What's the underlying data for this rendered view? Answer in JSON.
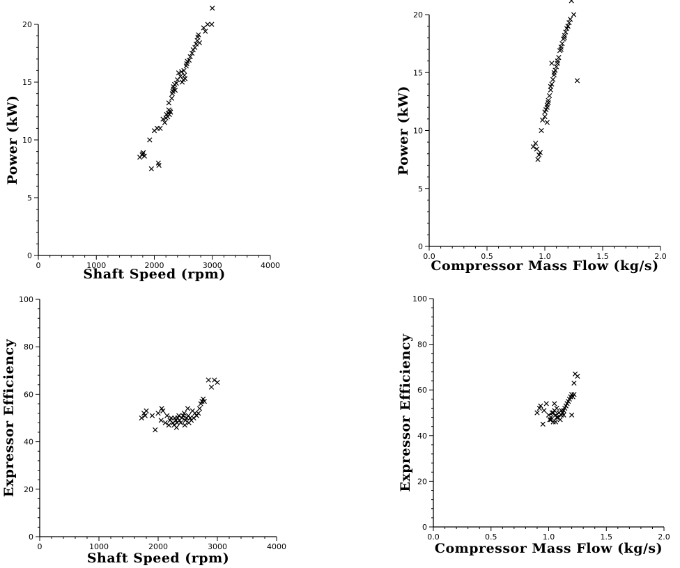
{
  "chart_data": [
    {
      "type": "scatter",
      "title": "",
      "xlabel": "Shaft Speed (rpm)",
      "ylabel": "Power (kW)",
      "xlim": [
        0,
        4000
      ],
      "ylim": [
        0,
        20
      ],
      "xticks": [
        0,
        1000,
        2000,
        3000,
        4000
      ],
      "yticks": [
        0,
        5,
        10,
        15,
        20
      ],
      "xtick_labels": [
        "0",
        "1000",
        "2000",
        "3000",
        "4000"
      ],
      "ytick_labels": [
        "0",
        "5",
        "10",
        "15",
        "20"
      ],
      "grid": false,
      "marker": "x",
      "series": [
        {
          "x": [
            1750,
            1790,
            1810,
            1830,
            1800,
            1950,
            1920,
            2000,
            2050,
            2080,
            2070,
            2100,
            2150,
            2180,
            2200,
            2210,
            2230,
            2240,
            2250,
            2260,
            2270,
            2280,
            2250,
            2300,
            2310,
            2320,
            2330,
            2330,
            2350,
            2360,
            2380,
            2400,
            2420,
            2450,
            2470,
            2480,
            2500,
            2510,
            2520,
            2530,
            2550,
            2560,
            2570,
            2600,
            2620,
            2650,
            2670,
            2700,
            2720,
            2740,
            2750,
            2760,
            2780,
            2850,
            2880,
            2920,
            3000,
            2990
          ],
          "y": [
            8.5,
            8.7,
            8.9,
            8.6,
            8.8,
            7.5,
            10.0,
            10.8,
            11.0,
            7.8,
            8.0,
            11.0,
            11.8,
            11.5,
            11.9,
            12.2,
            12.0,
            12.3,
            12.6,
            12.2,
            12.5,
            12.4,
            13.2,
            13.6,
            14.0,
            14.2,
            14.4,
            14.6,
            14.8,
            14.3,
            14.9,
            15.2,
            15.8,
            15.5,
            15.9,
            15.0,
            15.2,
            16.0,
            15.6,
            15.3,
            16.4,
            16.6,
            16.8,
            16.9,
            17.2,
            17.5,
            17.8,
            18.0,
            18.3,
            18.6,
            18.9,
            19.1,
            18.4,
            19.7,
            19.4,
            20.0,
            21.4,
            20.0
          ]
        }
      ]
    },
    {
      "type": "scatter",
      "title": "",
      "xlabel": "Compressor Mass Flow (kg/s)",
      "ylabel": "Power (kW)",
      "xlim": [
        0.0,
        2.0
      ],
      "ylim": [
        0,
        20
      ],
      "xticks": [
        0.0,
        0.5,
        1.0,
        1.5,
        2.0
      ],
      "yticks": [
        0,
        5,
        10,
        15,
        20
      ],
      "xtick_labels": [
        "0.0",
        "0.5",
        "1.0",
        "1.5",
        "2.0"
      ],
      "ytick_labels": [
        "0",
        "5",
        "10",
        "15",
        "20"
      ],
      "grid": false,
      "marker": "x",
      "series": [
        {
          "x": [
            0.9,
            0.92,
            0.93,
            0.94,
            0.95,
            0.96,
            0.97,
            0.98,
            1.0,
            1.01,
            1.02,
            1.03,
            1.02,
            1.04,
            1.05,
            1.06,
            1.07,
            1.08,
            1.09,
            1.1,
            1.11,
            1.12,
            1.13,
            1.14,
            1.15,
            1.16,
            1.17,
            1.18,
            1.19,
            1.2,
            1.21,
            1.22,
            1.23,
            1.25,
            1.28,
            1.03,
            1.05,
            1.08,
            1.11,
            1.14,
            1.17,
            1.2,
            1.0,
            1.02,
            1.06
          ],
          "y": [
            8.6,
            8.9,
            8.4,
            7.5,
            7.9,
            8.1,
            10.0,
            10.9,
            11.2,
            11.8,
            12.0,
            12.4,
            10.7,
            13.0,
            13.5,
            14.0,
            14.4,
            14.8,
            15.2,
            15.5,
            15.8,
            16.3,
            16.9,
            17.2,
            17.5,
            17.9,
            18.2,
            18.5,
            18.8,
            19.0,
            19.3,
            19.6,
            21.2,
            20.0,
            14.3,
            12.6,
            13.8,
            15.0,
            16.0,
            17.0,
            18.0,
            19.0,
            11.6,
            12.2,
            15.8
          ]
        }
      ]
    },
    {
      "type": "scatter",
      "title": "",
      "xlabel": "Shaft Speed (rpm)",
      "ylabel": "Expressor Efficiency",
      "xlim": [
        0,
        4000
      ],
      "ylim": [
        0,
        100
      ],
      "xticks": [
        0,
        1000,
        2000,
        3000,
        4000
      ],
      "yticks": [
        0,
        20,
        40,
        60,
        80,
        100
      ],
      "xtick_labels": [
        "0",
        "1000",
        "2000",
        "3000",
        "4000"
      ],
      "ytick_labels": [
        "0",
        "20",
        "40",
        "60",
        "80",
        "100"
      ],
      "grid": false,
      "marker": "x",
      "series": [
        {
          "x": [
            1720,
            1760,
            1780,
            1800,
            1900,
            1950,
            2000,
            2050,
            2060,
            2080,
            2120,
            2150,
            2180,
            2200,
            2220,
            2250,
            2270,
            2280,
            2300,
            2310,
            2320,
            2330,
            2350,
            2360,
            2380,
            2400,
            2420,
            2440,
            2450,
            2460,
            2480,
            2500,
            2510,
            2520,
            2540,
            2560,
            2580,
            2600,
            2620,
            2650,
            2680,
            2700,
            2720,
            2740,
            2760,
            2780,
            2850,
            2900,
            2950,
            3000
          ],
          "y": [
            50,
            52,
            51,
            53,
            51,
            45,
            52,
            49,
            54,
            53,
            48,
            51,
            47,
            49,
            50,
            48,
            47,
            50,
            49,
            46,
            48,
            50,
            51,
            49,
            48,
            50,
            51,
            52,
            47,
            49,
            50,
            54,
            51,
            48,
            50,
            49,
            53,
            50,
            52,
            51,
            52,
            54,
            56,
            57,
            58,
            57,
            66,
            63,
            66,
            65
          ]
        }
      ]
    },
    {
      "type": "scatter",
      "title": "",
      "xlabel": "Compressor Mass Flow (kg/s)",
      "ylabel": "Expressor Efficiency",
      "xlim": [
        0.0,
        2.0
      ],
      "ylim": [
        0,
        100
      ],
      "xticks": [
        0.0,
        0.5,
        1.0,
        1.5,
        2.0
      ],
      "yticks": [
        0,
        20,
        40,
        60,
        80,
        100
      ],
      "xtick_labels": [
        "0.0",
        "0.5",
        "1.0",
        "1.5",
        "2.0"
      ],
      "ytick_labels": [
        "0",
        "20",
        "40",
        "60",
        "80",
        "100"
      ],
      "grid": false,
      "marker": "x",
      "series": [
        {
          "x": [
            0.9,
            0.92,
            0.93,
            0.95,
            0.96,
            0.98,
            1.0,
            1.01,
            1.02,
            1.03,
            1.04,
            1.05,
            1.06,
            1.07,
            1.08,
            1.09,
            1.1,
            1.11,
            1.12,
            1.13,
            1.14,
            1.15,
            1.16,
            1.17,
            1.18,
            1.19,
            1.2,
            1.21,
            1.22,
            1.23,
            1.25,
            1.05,
            1.07,
            1.09,
            1.11,
            1.13,
            1.02,
            1.04,
            1.06,
            1.08,
            1.2,
            1.22
          ],
          "y": [
            50,
            52,
            53,
            45,
            51,
            54,
            49,
            47,
            48,
            50,
            46,
            51,
            49,
            52,
            48,
            50,
            47,
            49,
            50,
            51,
            52,
            53,
            54,
            55,
            56,
            57,
            49,
            57,
            58,
            67,
            66,
            54,
            48,
            50,
            51,
            49,
            47,
            50,
            46,
            48,
            58,
            63
          ]
        }
      ]
    }
  ]
}
